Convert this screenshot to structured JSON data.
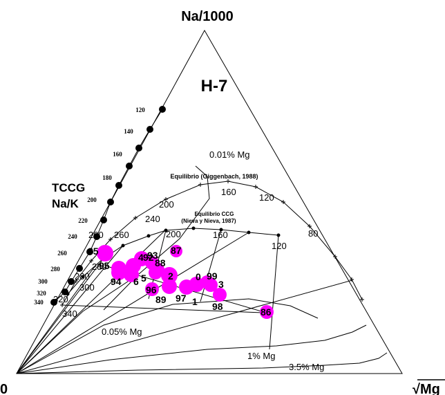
{
  "chart_data": {
    "type": "ternary-scatter",
    "title": "H-7",
    "apex_labels": {
      "top": "Na/1000",
      "left": "0",
      "right": "√Mg"
    },
    "k_scale_title": [
      "TCCG",
      "Na/K"
    ],
    "k_scale_ticks": [
      "120",
      "140",
      "160",
      "180",
      "200",
      "220",
      "240",
      "260",
      "280",
      "300",
      "320",
      "340"
    ],
    "equilibrium_curves": [
      {
        "label": "Equilibrio (Giggenbach, 1988)",
        "temperature_labels": [
          "340",
          "300",
          "280",
          "260",
          "240",
          "200",
          "160",
          "120",
          "80"
        ]
      },
      {
        "label": [
          "Equilibrio CCG",
          "(Nieva y Nieva, 1987)"
        ],
        "temperature_labels": [
          "320",
          "280",
          "260",
          "200",
          "160",
          "120"
        ]
      }
    ],
    "mg_isolines": [
      "0.01% Mg",
      "0.05% Mg",
      "1% Mg",
      "3.5% Mg"
    ],
    "samples": [
      "85",
      "95",
      "92",
      "4",
      "93",
      "88",
      "87",
      "94",
      "6",
      "5",
      "2",
      "96",
      "89",
      "97",
      "0",
      "99",
      "3",
      "1",
      "98",
      "86"
    ],
    "colors": {
      "samples": "#ff00ff",
      "lines": "#000000"
    }
  }
}
